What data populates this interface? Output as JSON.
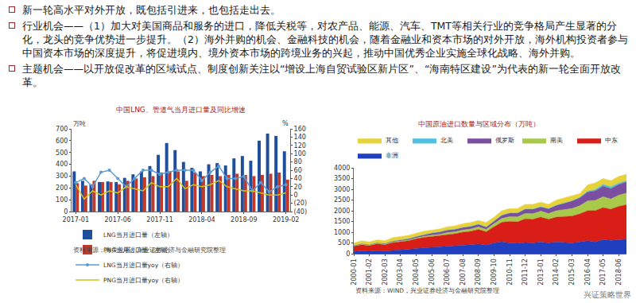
{
  "bullets": [
    "新一轮高水平对外开放，既包括引进来，也包括走出去。",
    "行业机会——（1）加大对美国商品和服务的进口，降低关税等，对农产品、能源、汽车、TMT等相关行业的竞争格局产生显著的分化，龙头的竞争优势进一步提升。（2）海外并购的机会、金融科技的机会，随着金融业和资本市场的对外开放，海外机构投资者参与中国资本市场的深度提升，将促进境内、境外资本市场的跨境业务的兴起，推动中国优秀企业实施全球化战略、海外并购。",
    "主题机会——以开放促改革的区域试点、制度创新关注以“增设上海自贸试验区新片区”、“海南特区建设”为代表的新一轮全面开放改革。"
  ],
  "watermark": "兴证策略世界",
  "chart_data": [
    {
      "type": "bar",
      "title": "中国LNG、管道气当月进口量及同比增速",
      "ylabel": "万吨",
      "y2label": "%",
      "source": "资料来源：海关总署，兴业证券经济与金融研究院整理",
      "categories": [
        "2017-01",
        null,
        null,
        null,
        null,
        "2017-06",
        null,
        null,
        null,
        null,
        "2017-11",
        null,
        null,
        null,
        null,
        "2018-04",
        null,
        null,
        null,
        null,
        "2018-09",
        null,
        null,
        null,
        null,
        "2019-02"
      ],
      "ylim": [
        0,
        700
      ],
      "yticks": [
        0,
        100,
        200,
        300,
        400,
        500,
        600,
        700
      ],
      "y2lim": [
        -40,
        160
      ],
      "y2ticks": [
        {
          "value": -40,
          "label": "(40)"
        },
        {
          "value": -20,
          "label": "(20)"
        },
        0,
        20,
        40,
        60,
        80,
        100,
        120,
        140,
        160
      ],
      "grid": false,
      "legend": "bottom",
      "series": [
        {
          "name": "LNG当月进口量（左轴）",
          "type": "bar",
          "color": "#1f4e9c",
          "values": [
            340,
            260,
            230,
            250,
            255,
            250,
            285,
            315,
            340,
            385,
            480,
            580,
            520,
            420,
            370,
            340,
            400,
            410,
            390,
            450,
            470,
            430,
            600,
            660,
            640,
            510
          ]
        },
        {
          "name": "PNG当月进口量（左轴）",
          "type": "bar",
          "color": "#c0392b",
          "values": [
            240,
            220,
            260,
            250,
            250,
            230,
            260,
            280,
            290,
            300,
            330,
            340,
            340,
            260,
            330,
            300,
            310,
            300,
            310,
            320,
            310,
            300,
            310,
            320,
            330,
            270
          ]
        },
        {
          "name": "LNG当月进口量yoy（右轴）",
          "type": "line",
          "axis": "y2",
          "color": "#5b9bd5",
          "marker": "circle",
          "values": [
            30,
            40,
            20,
            55,
            60,
            40,
            20,
            40,
            60,
            60,
            50,
            55,
            60,
            60,
            60,
            35,
            55,
            70,
            40,
            40,
            45,
            10,
            30,
            8,
            20,
            25
          ]
        },
        {
          "name": "PNG当月进口量yoy（右轴）",
          "type": "line",
          "axis": "y2",
          "color": "#d4c21a",
          "values": [
            25,
            -10,
            10,
            0,
            10,
            5,
            20,
            15,
            10,
            30,
            20,
            20,
            40,
            15,
            25,
            20,
            25,
            35,
            20,
            15,
            10,
            10,
            5,
            0,
            0,
            5
          ]
        }
      ]
    },
    {
      "type": "area",
      "title": "中国原油进口数量与区域分布（万吨）",
      "source": "资料来源：WIND，兴业证券经济与金融研究院整理",
      "categories": [
        "2000-01",
        null,
        "2001-02",
        null,
        "2002-03",
        null,
        "2003-04",
        null,
        "2004-05",
        null,
        "2005-06",
        null,
        "2006-07",
        null,
        "2007-08",
        null,
        "2008-09",
        null,
        "2009-10",
        null,
        "2010-11",
        null,
        "2011-12",
        null,
        "2013-01",
        null,
        "2014-02",
        null,
        "2015-03",
        null,
        "2016-04",
        null,
        "2017-05",
        null,
        "2018-06",
        null
      ],
      "ylim": [
        0,
        4000
      ],
      "yticks": [
        0,
        500,
        1000,
        1500,
        2000,
        2500,
        3000,
        3500,
        4000
      ],
      "grid": false,
      "stacked": true,
      "legend": "top",
      "series": [
        {
          "name": "非洲",
          "color": "#1f3fbf",
          "values": [
            100,
            130,
            110,
            140,
            120,
            160,
            180,
            200,
            250,
            280,
            300,
            320,
            350,
            370,
            400,
            420,
            450,
            400,
            500,
            560,
            500,
            480,
            520,
            500,
            550,
            500,
            550,
            520,
            500,
            550,
            600,
            550,
            650,
            620,
            650,
            680
          ]
        },
        {
          "name": "中东",
          "color": "#d91e18",
          "values": [
            250,
            290,
            270,
            320,
            300,
            360,
            380,
            400,
            440,
            480,
            500,
            520,
            550,
            560,
            600,
            620,
            680,
            620,
            750,
            900,
            1000,
            1000,
            1100,
            1100,
            1150,
            1100,
            1150,
            1200,
            1250,
            1300,
            1400,
            1450,
            1500,
            1450,
            1550,
            1600
          ]
        },
        {
          "name": "南美",
          "color": "#a8c94a",
          "values": [
            10,
            15,
            15,
            20,
            20,
            25,
            30,
            30,
            40,
            50,
            60,
            60,
            80,
            90,
            100,
            110,
            120,
            110,
            150,
            180,
            220,
            230,
            250,
            260,
            280,
            270,
            300,
            320,
            350,
            380,
            450,
            480,
            500,
            480,
            520,
            540
          ]
        },
        {
          "name": "俄罗斯",
          "color": "#7b4fa0",
          "values": [
            20,
            25,
            25,
            30,
            30,
            40,
            50,
            60,
            70,
            80,
            100,
            110,
            120,
            120,
            120,
            120,
            120,
            110,
            130,
            150,
            170,
            180,
            200,
            210,
            200,
            220,
            250,
            300,
            350,
            370,
            420,
            450,
            500,
            480,
            500,
            520
          ]
        },
        {
          "name": "北美",
          "color": "#4fc1e0",
          "values": [
            0,
            0,
            0,
            0,
            0,
            0,
            0,
            0,
            0,
            0,
            0,
            0,
            0,
            0,
            5,
            5,
            5,
            5,
            5,
            10,
            10,
            10,
            10,
            10,
            10,
            10,
            10,
            10,
            15,
            20,
            40,
            60,
            80,
            90,
            70,
            60
          ]
        },
        {
          "name": "其他",
          "color": "#e8d23a",
          "values": [
            120,
            140,
            130,
            140,
            130,
            165,
            160,
            160,
            150,
            160,
            140,
            140,
            150,
            160,
            175,
            175,
            175,
            205,
            165,
            200,
            200,
            200,
            220,
            220,
            210,
            200,
            240,
            250,
            235,
            180,
            290,
            310,
            270,
            280,
            310,
            300
          ]
        }
      ]
    }
  ]
}
